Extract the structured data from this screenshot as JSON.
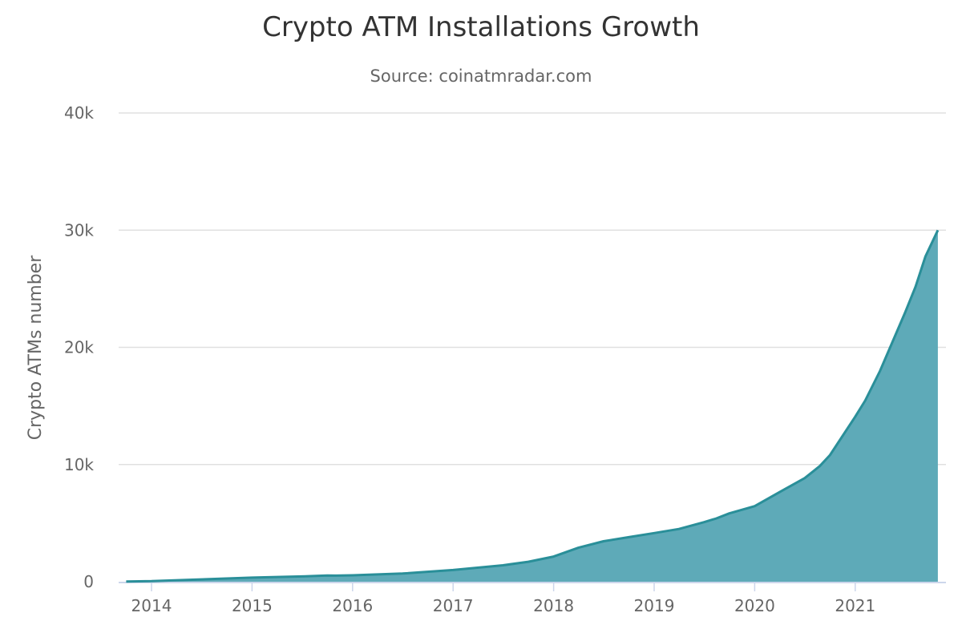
{
  "chart_data": {
    "type": "area",
    "title": "Crypto ATM Installations Growth",
    "subtitle": "Source: coinatmradar.com",
    "xlabel": "",
    "ylabel": "Crypto ATMs number",
    "ylim": [
      0,
      40000
    ],
    "yticks": [
      0,
      10000,
      20000,
      30000,
      40000
    ],
    "ytick_labels": [
      "0",
      "10k",
      "20k",
      "30k",
      "40k"
    ],
    "xticks": [
      "2014",
      "2015",
      "2016",
      "2017",
      "2018",
      "2019",
      "2020",
      "2021"
    ],
    "grid": true,
    "legend": "none",
    "colors": {
      "line": "#2a8f99",
      "fill": "#5eaab8",
      "grid": "#e0e0e0",
      "axis": "#ccd6eb"
    },
    "series": [
      {
        "x": [
          "2013-10-01",
          "2014-01-01",
          "2014-07-01",
          "2015-01-01",
          "2015-07-01",
          "2015-10-01",
          "2015-11-01",
          "2016-01-01",
          "2016-07-01",
          "2017-01-01",
          "2017-07-01",
          "2017-10-01",
          "2018-01-01",
          "2018-04-01",
          "2018-07-01",
          "2018-10-01",
          "2019-01-01",
          "2019-04-01",
          "2019-07-01",
          "2019-08-15",
          "2019-10-01",
          "2020-01-01",
          "2020-04-01",
          "2020-07-01",
          "2020-08-25",
          "2020-10-01",
          "2021-01-01",
          "2021-02-06",
          "2021-04-01",
          "2021-07-01",
          "2021-08-08",
          "2021-09-13",
          "2021-10-28"
        ],
        "y": [
          20,
          50,
          200,
          350,
          450,
          530,
          520,
          550,
          700,
          1000,
          1400,
          1700,
          2150,
          2900,
          3450,
          3800,
          4150,
          4500,
          5080,
          5400,
          5830,
          6450,
          7650,
          8840,
          9870,
          10800,
          14080,
          15450,
          17980,
          22970,
          25160,
          27760,
          30000
        ]
      }
    ]
  }
}
